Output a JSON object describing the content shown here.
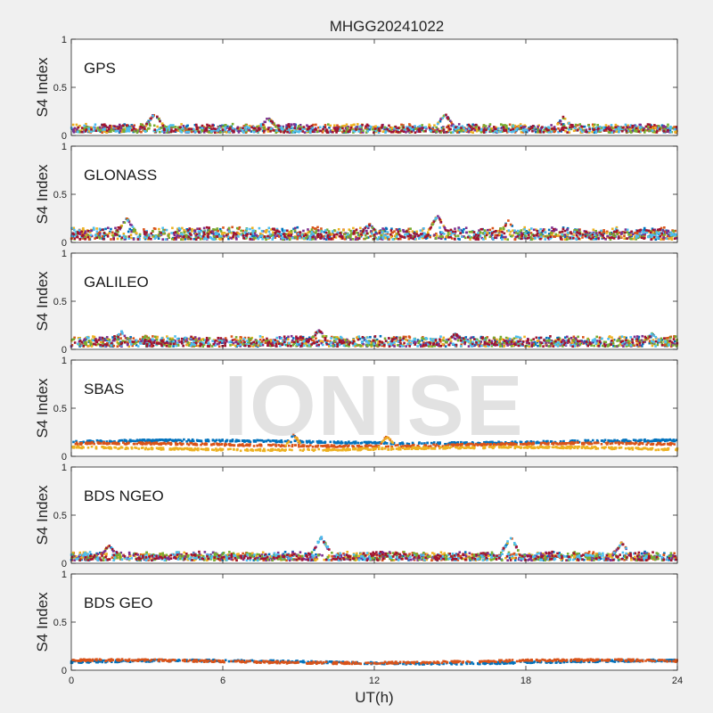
{
  "figure": {
    "title": "MHGG20241022",
    "watermark": "IONISE",
    "xlabel": "UT(h)",
    "ylabel": "S4 Index"
  },
  "colors": {
    "background": "#f0f0f0",
    "axes_bg": "#ffffff",
    "axis_line": "#262626",
    "palette": [
      "#0072BD",
      "#D95319",
      "#EDB120",
      "#7E2F8E",
      "#77AC30",
      "#4DBEEE",
      "#A2142F"
    ]
  },
  "chart_data": [
    {
      "type": "scatter",
      "label": "GPS",
      "xlim": [
        0,
        24
      ],
      "ylim": [
        0,
        1
      ],
      "xticks": [
        0,
        6,
        12,
        18,
        24
      ],
      "yticks": [
        0,
        0.5,
        1
      ],
      "ytick_labels": [
        "0",
        "0.5",
        "1"
      ],
      "series_summary": {
        "series_count": 7,
        "baseline": 0.07,
        "spread": 0.05,
        "peaks": [
          [
            3.3,
            0.22
          ],
          [
            14.8,
            0.21
          ],
          [
            7.8,
            0.17
          ],
          [
            19.5,
            0.18
          ]
        ]
      }
    },
    {
      "type": "scatter",
      "label": "GLONASS",
      "xlim": [
        0,
        24
      ],
      "ylim": [
        0,
        1
      ],
      "xticks": [
        0,
        6,
        12,
        18,
        24
      ],
      "yticks": [
        0,
        0.5,
        1
      ],
      "ytick_labels": [
        "0",
        "0.5",
        "1"
      ],
      "series_summary": {
        "series_count": 7,
        "baseline": 0.08,
        "spread": 0.08,
        "peaks": [
          [
            2.2,
            0.24
          ],
          [
            14.5,
            0.27
          ],
          [
            17.3,
            0.21
          ],
          [
            11.8,
            0.18
          ]
        ]
      }
    },
    {
      "type": "scatter",
      "label": "GALILEO",
      "xlim": [
        0,
        24
      ],
      "ylim": [
        0,
        1
      ],
      "xticks": [
        0,
        6,
        12,
        18,
        24
      ],
      "yticks": [
        0,
        0.5,
        1
      ],
      "ytick_labels": [
        "0",
        "0.5",
        "1"
      ],
      "series_summary": {
        "series_count": 7,
        "baseline": 0.08,
        "spread": 0.06,
        "peaks": [
          [
            2.0,
            0.17
          ],
          [
            9.8,
            0.19
          ],
          [
            15.2,
            0.15
          ],
          [
            23.0,
            0.15
          ]
        ]
      }
    },
    {
      "type": "scatter",
      "label": "SBAS",
      "xlim": [
        0,
        24
      ],
      "ylim": [
        0,
        1
      ],
      "xticks": [
        0,
        6,
        12,
        18,
        24
      ],
      "yticks": [
        0,
        0.5,
        1
      ],
      "ytick_labels": [
        "0",
        "0.5",
        "1"
      ],
      "series_summary": {
        "series_count": 3,
        "baselines": [
          0.15,
          0.12,
          0.08
        ],
        "peaks": [
          [
            8.8,
            0.22
          ],
          [
            12.5,
            0.2
          ]
        ]
      }
    },
    {
      "type": "scatter",
      "label": "BDS NGEO",
      "xlim": [
        0,
        24
      ],
      "ylim": [
        0,
        1
      ],
      "xticks": [
        0,
        6,
        12,
        18,
        24
      ],
      "yticks": [
        0,
        0.5,
        1
      ],
      "ytick_labels": [
        "0",
        "0.5",
        "1"
      ],
      "series_summary": {
        "series_count": 7,
        "baseline": 0.07,
        "spread": 0.05,
        "peaks": [
          [
            9.9,
            0.26
          ],
          [
            17.4,
            0.26
          ],
          [
            21.8,
            0.2
          ],
          [
            1.5,
            0.17
          ]
        ]
      }
    },
    {
      "type": "scatter",
      "label": "BDS GEO",
      "xlim": [
        0,
        24
      ],
      "ylim": [
        0,
        1
      ],
      "xticks": [
        0,
        6,
        12,
        18,
        24
      ],
      "xtick_labels": [
        "0",
        "6",
        "12",
        "18",
        "24"
      ],
      "yticks": [
        0,
        0.5,
        1
      ],
      "ytick_labels": [
        "0",
        "0.5",
        "1"
      ],
      "series_summary": {
        "series_count": 2,
        "baselines": [
          0.085,
          0.09
        ],
        "peaks": []
      }
    }
  ]
}
